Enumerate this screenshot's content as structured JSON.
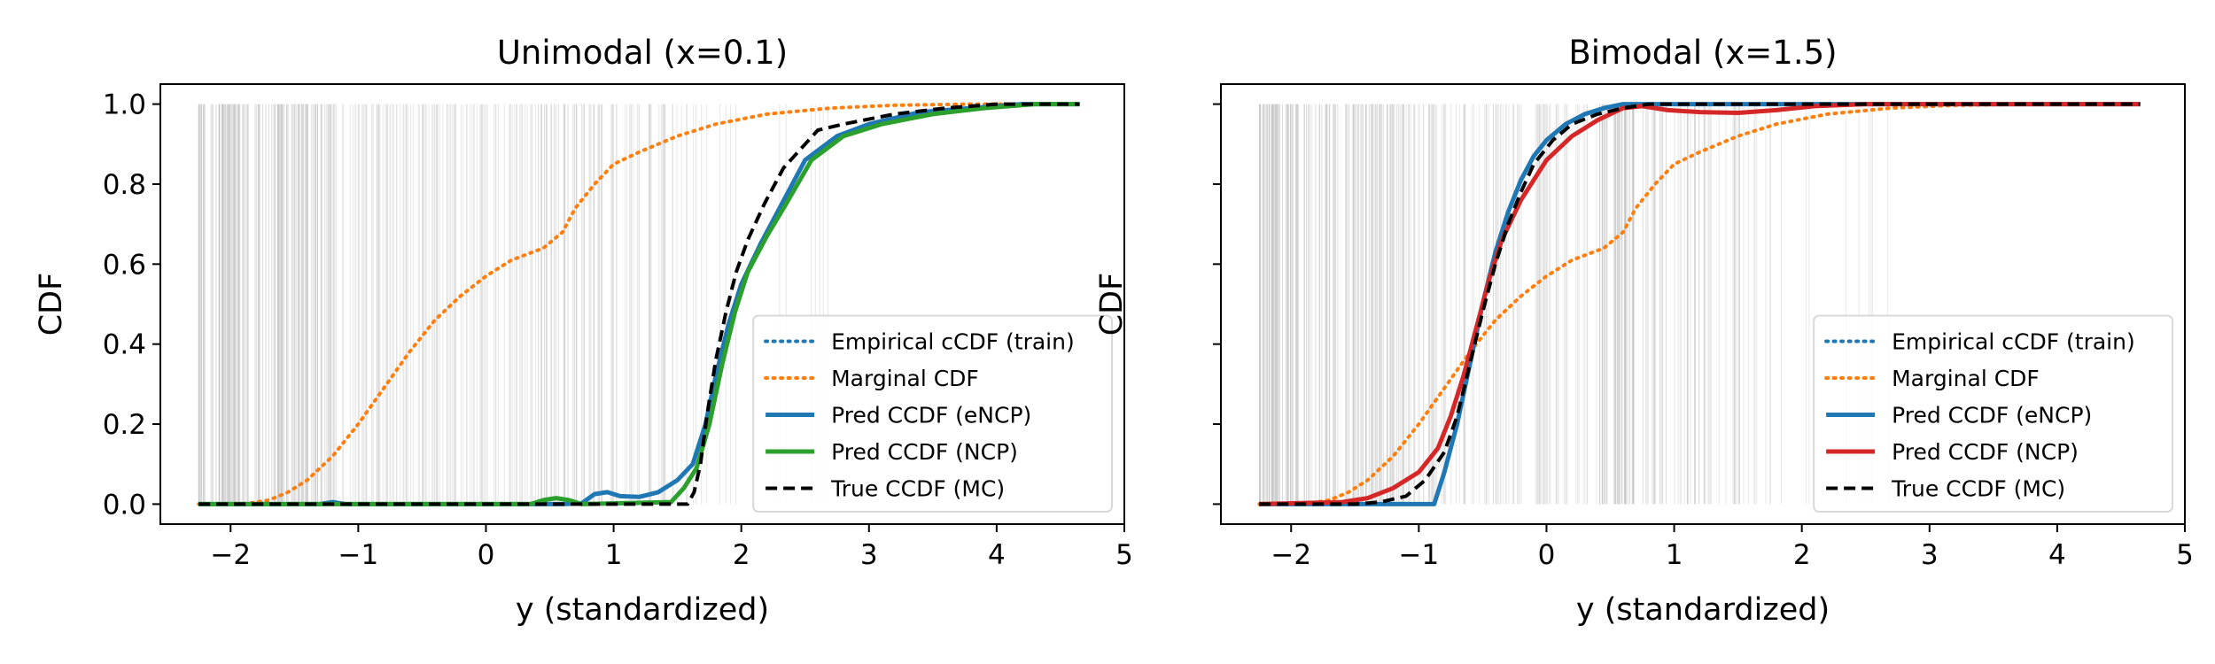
{
  "chart_data": [
    {
      "type": "line",
      "title": "Unimodal (x=0.1)",
      "xlabel": "y (standardized)",
      "ylabel": "CDF",
      "xlim": [
        -2.55,
        5.0
      ],
      "ylim": [
        -0.05,
        1.05
      ],
      "xticks": [
        -2,
        -1,
        0,
        1,
        2,
        3,
        4,
        5
      ],
      "yticks": [
        0.0,
        0.2,
        0.4,
        0.6,
        0.8,
        1.0
      ],
      "xtick_labels": [
        "−2",
        "−1",
        "0",
        "1",
        "2",
        "3",
        "4",
        "5"
      ],
      "ytick_labels": [
        "0.0",
        "0.2",
        "0.4",
        "0.6",
        "0.8",
        "1.0"
      ],
      "show_ytick_labels": true,
      "legend_position": "lower-right",
      "series": [
        {
          "name": "Empirical cCDF (train)",
          "style": "dotted",
          "color": "#1f77b4",
          "points": []
        },
        {
          "name": "Marginal CDF",
          "style": "dotted",
          "color": "#ff7f0e",
          "points": [
            [
              -2.25,
              0.0
            ],
            [
              -1.9,
              0.0
            ],
            [
              -1.7,
              0.01
            ],
            [
              -1.55,
              0.03
            ],
            [
              -1.4,
              0.06
            ],
            [
              -1.2,
              0.12
            ],
            [
              -1.0,
              0.2
            ],
            [
              -0.8,
              0.29
            ],
            [
              -0.6,
              0.38
            ],
            [
              -0.4,
              0.46
            ],
            [
              -0.2,
              0.52
            ],
            [
              0.0,
              0.57
            ],
            [
              0.2,
              0.61
            ],
            [
              0.45,
              0.64
            ],
            [
              0.6,
              0.68
            ],
            [
              0.7,
              0.74
            ],
            [
              0.85,
              0.8
            ],
            [
              1.0,
              0.85
            ],
            [
              1.2,
              0.88
            ],
            [
              1.5,
              0.92
            ],
            [
              1.8,
              0.95
            ],
            [
              2.2,
              0.975
            ],
            [
              2.7,
              0.99
            ],
            [
              3.2,
              0.997
            ],
            [
              3.8,
              1.0
            ],
            [
              4.2,
              1.0
            ]
          ]
        },
        {
          "name": "Pred CCDF (eNCP)",
          "style": "solid",
          "color": "#1f77b4",
          "points": [
            [
              -2.25,
              0.0
            ],
            [
              -1.3,
              0.0
            ],
            [
              -1.2,
              0.005
            ],
            [
              -1.1,
              0.0
            ],
            [
              0.6,
              0.0
            ],
            [
              0.75,
              0.002
            ],
            [
              0.85,
              0.025
            ],
            [
              0.95,
              0.03
            ],
            [
              1.05,
              0.02
            ],
            [
              1.2,
              0.018
            ],
            [
              1.35,
              0.03
            ],
            [
              1.5,
              0.06
            ],
            [
              1.62,
              0.1
            ],
            [
              1.72,
              0.2
            ],
            [
              1.8,
              0.32
            ],
            [
              1.9,
              0.45
            ],
            [
              2.0,
              0.55
            ],
            [
              2.15,
              0.65
            ],
            [
              2.3,
              0.74
            ],
            [
              2.5,
              0.86
            ],
            [
              2.75,
              0.92
            ],
            [
              3.0,
              0.95
            ],
            [
              3.4,
              0.98
            ],
            [
              3.8,
              0.99
            ],
            [
              4.2,
              1.0
            ],
            [
              4.65,
              1.0
            ]
          ]
        },
        {
          "name": "Pred CCDF (NCP)",
          "style": "solid",
          "color": "#2ca02c",
          "points": [
            [
              -2.25,
              0.0
            ],
            [
              0.35,
              0.0
            ],
            [
              0.45,
              0.01
            ],
            [
              0.55,
              0.015
            ],
            [
              0.65,
              0.01
            ],
            [
              0.75,
              0.0
            ],
            [
              1.45,
              0.005
            ],
            [
              1.55,
              0.04
            ],
            [
              1.65,
              0.09
            ],
            [
              1.75,
              0.2
            ],
            [
              1.85,
              0.35
            ],
            [
              1.95,
              0.48
            ],
            [
              2.05,
              0.58
            ],
            [
              2.2,
              0.67
            ],
            [
              2.35,
              0.75
            ],
            [
              2.55,
              0.86
            ],
            [
              2.8,
              0.92
            ],
            [
              3.1,
              0.95
            ],
            [
              3.5,
              0.975
            ],
            [
              3.9,
              0.99
            ],
            [
              4.3,
              1.0
            ],
            [
              4.65,
              1.0
            ]
          ]
        },
        {
          "name": "True CCDF (MC)",
          "style": "dashed",
          "color": "#000000",
          "points": [
            [
              -2.25,
              0.0
            ],
            [
              1.58,
              0.0
            ],
            [
              1.63,
              0.03
            ],
            [
              1.68,
              0.1
            ],
            [
              1.73,
              0.22
            ],
            [
              1.8,
              0.36
            ],
            [
              1.88,
              0.48
            ],
            [
              1.96,
              0.58
            ],
            [
              2.05,
              0.66
            ],
            [
              2.18,
              0.75
            ],
            [
              2.33,
              0.84
            ],
            [
              2.5,
              0.9
            ],
            [
              2.6,
              0.935
            ],
            [
              2.8,
              0.95
            ],
            [
              3.2,
              0.975
            ],
            [
              3.6,
              0.99
            ],
            [
              4.0,
              1.0
            ],
            [
              4.65,
              1.0
            ]
          ]
        }
      ]
    },
    {
      "type": "line",
      "title": "Bimodal (x=1.5)",
      "xlabel": "y (standardized)",
      "ylabel": "CDF",
      "xlim": [
        -2.55,
        5.0
      ],
      "ylim": [
        -0.05,
        1.05
      ],
      "xticks": [
        -2,
        -1,
        0,
        1,
        2,
        3,
        4,
        5
      ],
      "yticks": [
        0.0,
        0.2,
        0.4,
        0.6,
        0.8,
        1.0
      ],
      "xtick_labels": [
        "−2",
        "−1",
        "0",
        "1",
        "2",
        "3",
        "4",
        "5"
      ],
      "ytick_labels": [
        "",
        "",
        "",
        "",
        "",
        ""
      ],
      "show_ytick_labels": false,
      "legend_position": "lower-right",
      "series": [
        {
          "name": "Empirical cCDF (train)",
          "style": "dotted",
          "color": "#1f77b4",
          "points": []
        },
        {
          "name": "Marginal CDF",
          "style": "dotted",
          "color": "#ff7f0e",
          "points": [
            [
              -2.25,
              0.0
            ],
            [
              -1.9,
              0.0
            ],
            [
              -1.7,
              0.01
            ],
            [
              -1.55,
              0.03
            ],
            [
              -1.4,
              0.06
            ],
            [
              -1.2,
              0.12
            ],
            [
              -1.0,
              0.2
            ],
            [
              -0.8,
              0.29
            ],
            [
              -0.6,
              0.38
            ],
            [
              -0.4,
              0.46
            ],
            [
              -0.2,
              0.52
            ],
            [
              0.0,
              0.57
            ],
            [
              0.2,
              0.61
            ],
            [
              0.45,
              0.64
            ],
            [
              0.6,
              0.68
            ],
            [
              0.7,
              0.74
            ],
            [
              0.85,
              0.8
            ],
            [
              1.0,
              0.85
            ],
            [
              1.2,
              0.88
            ],
            [
              1.5,
              0.92
            ],
            [
              1.8,
              0.95
            ],
            [
              2.2,
              0.975
            ],
            [
              2.7,
              0.99
            ],
            [
              3.2,
              0.997
            ],
            [
              3.8,
              1.0
            ],
            [
              4.2,
              1.0
            ]
          ]
        },
        {
          "name": "Pred CCDF (eNCP)",
          "style": "solid",
          "color": "#1f77b4",
          "points": [
            [
              -2.25,
              0.0
            ],
            [
              -0.88,
              0.0
            ],
            [
              -0.8,
              0.08
            ],
            [
              -0.7,
              0.2
            ],
            [
              -0.6,
              0.35
            ],
            [
              -0.5,
              0.5
            ],
            [
              -0.4,
              0.63
            ],
            [
              -0.3,
              0.73
            ],
            [
              -0.2,
              0.81
            ],
            [
              -0.1,
              0.87
            ],
            [
              0.0,
              0.91
            ],
            [
              0.15,
              0.95
            ],
            [
              0.3,
              0.975
            ],
            [
              0.45,
              0.99
            ],
            [
              0.6,
              1.0
            ],
            [
              1.5,
              1.0
            ],
            [
              4.65,
              1.0
            ]
          ]
        },
        {
          "name": "Pred CCDF (NCP)",
          "style": "solid",
          "color": "#d62728",
          "points": [
            [
              -2.25,
              0.0
            ],
            [
              -1.6,
              0.005
            ],
            [
              -1.4,
              0.015
            ],
            [
              -1.2,
              0.04
            ],
            [
              -1.0,
              0.08
            ],
            [
              -0.85,
              0.14
            ],
            [
              -0.75,
              0.22
            ],
            [
              -0.65,
              0.32
            ],
            [
              -0.55,
              0.44
            ],
            [
              -0.45,
              0.56
            ],
            [
              -0.35,
              0.66
            ],
            [
              -0.2,
              0.76
            ],
            [
              0.0,
              0.86
            ],
            [
              0.2,
              0.92
            ],
            [
              0.4,
              0.96
            ],
            [
              0.6,
              0.99
            ],
            [
              0.75,
              0.995
            ],
            [
              0.95,
              0.985
            ],
            [
              1.2,
              0.98
            ],
            [
              1.5,
              0.978
            ],
            [
              1.8,
              0.985
            ],
            [
              2.1,
              0.995
            ],
            [
              2.5,
              1.0
            ],
            [
              4.65,
              1.0
            ]
          ]
        },
        {
          "name": "True CCDF (MC)",
          "style": "dashed",
          "color": "#000000",
          "points": [
            [
              -2.25,
              0.0
            ],
            [
              -1.5,
              0.0
            ],
            [
              -1.3,
              0.005
            ],
            [
              -1.1,
              0.02
            ],
            [
              -0.95,
              0.06
            ],
            [
              -0.8,
              0.13
            ],
            [
              -0.7,
              0.22
            ],
            [
              -0.6,
              0.35
            ],
            [
              -0.5,
              0.48
            ],
            [
              -0.4,
              0.6
            ],
            [
              -0.3,
              0.7
            ],
            [
              -0.2,
              0.78
            ],
            [
              -0.1,
              0.85
            ],
            [
              0.05,
              0.91
            ],
            [
              0.2,
              0.95
            ],
            [
              0.4,
              0.975
            ],
            [
              0.6,
              0.99
            ],
            [
              0.8,
              1.0
            ],
            [
              4.65,
              1.0
            ]
          ]
        }
      ]
    }
  ]
}
